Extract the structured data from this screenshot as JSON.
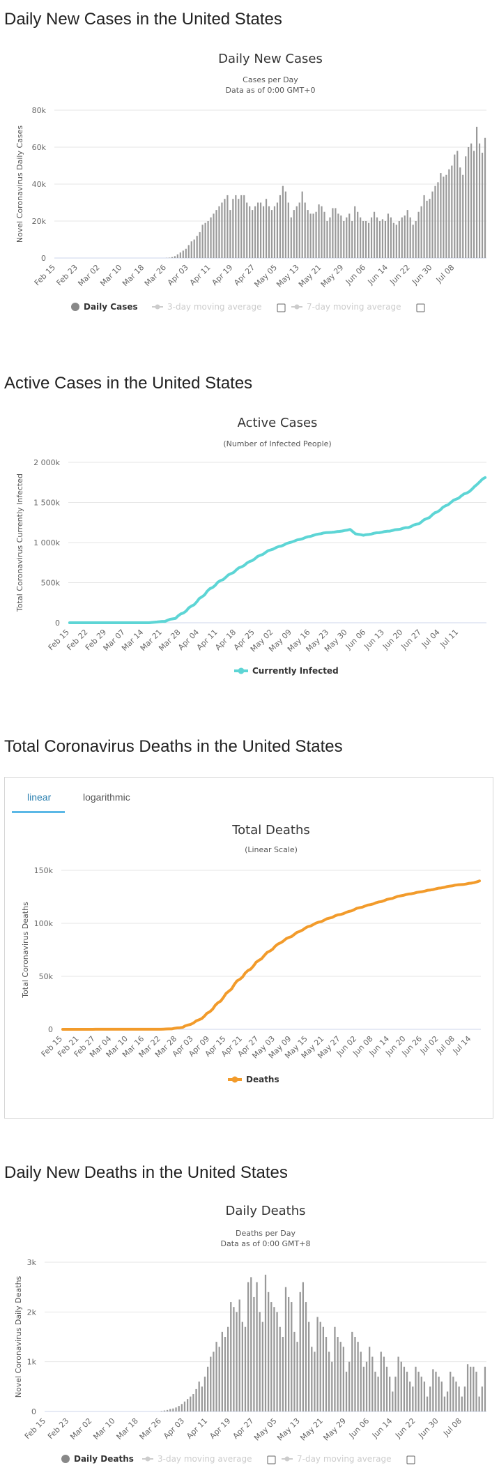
{
  "sections": {
    "daily_cases": "Daily New Cases in the United States",
    "active_cases": "Active Cases in the United States",
    "total_deaths": "Total Coronavirus Deaths in the United States",
    "daily_deaths": "Daily New Deaths in the United States"
  },
  "tabs": {
    "linear": "linear",
    "logarithmic": "logarithmic"
  },
  "colors": {
    "bars": "#999999",
    "active": "#5dd5d5",
    "deaths": "#f29b2b",
    "grid": "#e6e6e6",
    "legend_off": "#cccccc"
  },
  "chart_data": [
    {
      "id": "daily_cases",
      "type": "bar",
      "title": "Daily New Cases",
      "subtitle_lines": [
        "Cases per Day",
        "Data as of 0:00 GMT+0"
      ],
      "ylabel": "Novel Coronavirus Daily Cases",
      "ylim": [
        0,
        80000
      ],
      "yticks": [
        0,
        20000,
        40000,
        60000,
        80000
      ],
      "ytick_labels": [
        "0",
        "20k",
        "40k",
        "60k",
        "80k"
      ],
      "xticks": [
        "Feb 15",
        "Feb 23",
        "Mar 02",
        "Mar 10",
        "Mar 18",
        "Mar 26",
        "Apr 03",
        "Apr 11",
        "Apr 19",
        "Apr 27",
        "May 05",
        "May 13",
        "May 21",
        "May 29",
        "Jun 06",
        "Jun 14",
        "Jun 22",
        "Jun 30",
        "Jul 08"
      ],
      "start_date": "Feb 15",
      "values": [
        0,
        0,
        0,
        0,
        0,
        0,
        0,
        0,
        0,
        0,
        0,
        0,
        0,
        0,
        0,
        0,
        0,
        0,
        0,
        0,
        0,
        0,
        0,
        0,
        0,
        0,
        0,
        0,
        0,
        0,
        0,
        0,
        0,
        0,
        0,
        0,
        0,
        0,
        0,
        0,
        100,
        200,
        500,
        1000,
        2000,
        3000,
        4000,
        5000,
        7000,
        9000,
        10000,
        12000,
        14000,
        18000,
        19000,
        20000,
        22000,
        24000,
        26000,
        28000,
        30000,
        32000,
        34000,
        26000,
        32000,
        34000,
        32000,
        34000,
        34000,
        30000,
        28000,
        26000,
        28000,
        30000,
        30000,
        28000,
        32000,
        28000,
        26000,
        28000,
        30000,
        34000,
        39000,
        36000,
        30000,
        22000,
        26000,
        28000,
        30000,
        36000,
        30000,
        26000,
        24000,
        24000,
        25000,
        29000,
        28000,
        25000,
        20000,
        22000,
        27000,
        27000,
        24000,
        23000,
        20000,
        22000,
        24000,
        20000,
        28000,
        25000,
        22000,
        20000,
        20000,
        19000,
        22000,
        25000,
        22000,
        20000,
        21000,
        20000,
        24000,
        22000,
        19000,
        18000,
        20000,
        22000,
        23000,
        26000,
        22000,
        18000,
        20000,
        25000,
        28000,
        34000,
        31000,
        32000,
        36000,
        39000,
        41000,
        46000,
        44000,
        45000,
        48000,
        50000,
        56000,
        58000,
        49000,
        45000,
        55000,
        60000,
        62000,
        58000,
        71000,
        62000,
        57000,
        65000
      ],
      "legend": [
        {
          "label": "Daily Cases",
          "active": true
        },
        {
          "label": "3-day moving average",
          "active": false
        },
        {
          "label": "7-day moving average",
          "active": false
        }
      ]
    },
    {
      "id": "active_cases",
      "type": "line",
      "title": "Active Cases",
      "subtitle_lines": [
        "(Number of Infected People)"
      ],
      "ylabel": "Total Coronavirus Currently Infected",
      "ylim": [
        0,
        2000000
      ],
      "yticks": [
        0,
        500000,
        1000000,
        1500000,
        2000000
      ],
      "ytick_labels": [
        "0",
        "500k",
        "1 000k",
        "1 500k",
        "2 000k"
      ],
      "xticks": [
        "Feb 15",
        "Feb 22",
        "Feb 29",
        "Mar 07",
        "Mar 14",
        "Mar 21",
        "Mar 28",
        "Apr 04",
        "Apr 11",
        "Apr 18",
        "Apr 25",
        "May 02",
        "May 09",
        "May 16",
        "May 23",
        "May 30",
        "Jun 06",
        "Jun 13",
        "Jun 20",
        "Jun 27",
        "Jul 04",
        "Jul 11"
      ],
      "start_date": "Feb 15",
      "anchors": [
        [
          0,
          0
        ],
        [
          30,
          0
        ],
        [
          36,
          20000
        ],
        [
          40,
          60000
        ],
        [
          44,
          150000
        ],
        [
          48,
          260000
        ],
        [
          52,
          390000
        ],
        [
          56,
          500000
        ],
        [
          60,
          590000
        ],
        [
          64,
          680000
        ],
        [
          68,
          760000
        ],
        [
          72,
          840000
        ],
        [
          76,
          910000
        ],
        [
          80,
          960000
        ],
        [
          84,
          1010000
        ],
        [
          88,
          1050000
        ],
        [
          92,
          1090000
        ],
        [
          96,
          1120000
        ],
        [
          100,
          1130000
        ],
        [
          104,
          1150000
        ],
        [
          106,
          1160000
        ],
        [
          108,
          1110000
        ],
        [
          111,
          1090000
        ],
        [
          116,
          1120000
        ],
        [
          122,
          1150000
        ],
        [
          128,
          1190000
        ],
        [
          132,
          1240000
        ],
        [
          136,
          1320000
        ],
        [
          140,
          1410000
        ],
        [
          144,
          1500000
        ],
        [
          148,
          1580000
        ],
        [
          152,
          1660000
        ],
        [
          154,
          1730000
        ],
        [
          156,
          1790000
        ],
        [
          157,
          1810000
        ]
      ],
      "legend": [
        {
          "label": "Currently Infected",
          "active": true
        }
      ]
    },
    {
      "id": "total_deaths",
      "type": "line",
      "title": "Total Deaths",
      "subtitle_lines": [
        "(Linear Scale)"
      ],
      "ylabel": "Total Coronavirus Deaths",
      "ylim": [
        0,
        150000
      ],
      "yticks": [
        0,
        50000,
        100000,
        150000
      ],
      "ytick_labels": [
        "0",
        "50k",
        "100k",
        "150k"
      ],
      "xticks": [
        "Feb 15",
        "Feb 21",
        "Feb 27",
        "Mar 04",
        "Mar 10",
        "Mar 16",
        "Mar 22",
        "Mar 28",
        "Apr 03",
        "Apr 09",
        "Apr 15",
        "Apr 21",
        "Apr 27",
        "May 03",
        "May 09",
        "May 15",
        "May 21",
        "May 27",
        "Jun 02",
        "Jun 08",
        "Jun 14",
        "Jun 20",
        "Jun 26",
        "Jul 02",
        "Jul 08",
        "Jul 14"
      ],
      "start_date": "Feb 15",
      "anchors": [
        [
          0,
          0
        ],
        [
          36,
          100
        ],
        [
          40,
          500
        ],
        [
          44,
          2000
        ],
        [
          48,
          6000
        ],
        [
          52,
          12000
        ],
        [
          56,
          22000
        ],
        [
          60,
          33000
        ],
        [
          64,
          45000
        ],
        [
          68,
          55000
        ],
        [
          72,
          65000
        ],
        [
          76,
          74000
        ],
        [
          80,
          82000
        ],
        [
          84,
          88000
        ],
        [
          88,
          94000
        ],
        [
          92,
          99000
        ],
        [
          96,
          103000
        ],
        [
          100,
          107000
        ],
        [
          104,
          110000
        ],
        [
          108,
          114000
        ],
        [
          112,
          117000
        ],
        [
          116,
          120000
        ],
        [
          120,
          123000
        ],
        [
          124,
          126000
        ],
        [
          128,
          128000
        ],
        [
          132,
          130000
        ],
        [
          136,
          132000
        ],
        [
          140,
          134000
        ],
        [
          144,
          136000
        ],
        [
          148,
          137000
        ],
        [
          152,
          139000
        ],
        [
          153,
          140000
        ]
      ],
      "legend": [
        {
          "label": "Deaths",
          "active": true
        }
      ]
    },
    {
      "id": "daily_deaths",
      "type": "bar",
      "title": "Daily Deaths",
      "subtitle_lines": [
        "Deaths per Day",
        "Data as of 0:00 GMT+8"
      ],
      "ylabel": "Novel Coronavirus Daily Deaths",
      "ylim": [
        0,
        3000
      ],
      "yticks": [
        0,
        1000,
        2000,
        3000
      ],
      "ytick_labels": [
        "0",
        "1k",
        "2k",
        "3k"
      ],
      "xticks": [
        "Feb 15",
        "Feb 23",
        "Mar 02",
        "Mar 10",
        "Mar 18",
        "Mar 26",
        "Apr 03",
        "Apr 11",
        "Apr 19",
        "Apr 27",
        "May 05",
        "May 13",
        "May 21",
        "May 29",
        "Jun 06",
        "Jun 14",
        "Jun 22",
        "Jun 30",
        "Jul 08"
      ],
      "start_date": "Feb 15",
      "values": [
        0,
        0,
        0,
        0,
        0,
        0,
        0,
        0,
        0,
        0,
        0,
        0,
        0,
        0,
        0,
        0,
        0,
        0,
        0,
        0,
        0,
        0,
        0,
        0,
        0,
        0,
        0,
        0,
        0,
        0,
        0,
        0,
        0,
        0,
        0,
        0,
        0,
        0,
        0,
        0,
        10,
        20,
        30,
        50,
        60,
        80,
        110,
        150,
        200,
        250,
        300,
        350,
        450,
        600,
        500,
        700,
        900,
        1100,
        1200,
        1400,
        1300,
        1600,
        1500,
        1700,
        2200,
        2100,
        2000,
        2250,
        1800,
        1700,
        2600,
        2700,
        2300,
        2600,
        2000,
        1800,
        2750,
        2400,
        2200,
        2100,
        2000,
        1700,
        1500,
        2500,
        2300,
        2200,
        1600,
        1400,
        2400,
        2600,
        2200,
        1800,
        1300,
        1200,
        1900,
        1800,
        1700,
        1500,
        1200,
        1000,
        1700,
        1500,
        1400,
        1300,
        800,
        1000,
        1600,
        1500,
        1400,
        1200,
        900,
        1000,
        1300,
        1100,
        800,
        700,
        1200,
        1100,
        900,
        700,
        400,
        700,
        1100,
        1000,
        900,
        800,
        600,
        500,
        900,
        800,
        700,
        600,
        300,
        500,
        850,
        800,
        700,
        600,
        300,
        400,
        800,
        700,
        600,
        500,
        300,
        500,
        950,
        900,
        900,
        800,
        300,
        500,
        900
      ],
      "legend": [
        {
          "label": "Daily Deaths",
          "active": true
        },
        {
          "label": "3-day moving average",
          "active": false
        },
        {
          "label": "7-day moving average",
          "active": false
        }
      ]
    }
  ]
}
